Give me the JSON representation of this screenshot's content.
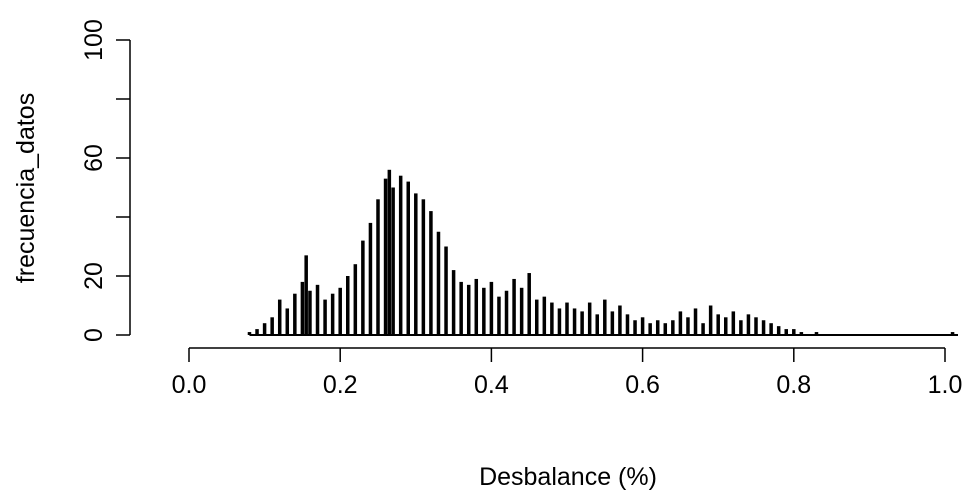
{
  "chart_data": {
    "type": "bar",
    "title": "",
    "xlabel": "Desbalance (%)",
    "ylabel": "frecuencia_datos",
    "xlim": [
      0,
      1.0
    ],
    "ylim": [
      0,
      100
    ],
    "x_ticks": [
      {
        "value": 0.0,
        "label": "0.0"
      },
      {
        "value": 0.2,
        "label": "0.2"
      },
      {
        "value": 0.4,
        "label": "0.4"
      },
      {
        "value": 0.6,
        "label": "0.6"
      },
      {
        "value": 0.8,
        "label": "0.8"
      },
      {
        "value": 1.0,
        "label": "1.0"
      }
    ],
    "y_ticks": [
      {
        "value": 0,
        "label": "0"
      },
      {
        "value": 20,
        "label": "20"
      },
      {
        "value": 40,
        "label": ""
      },
      {
        "value": 60,
        "label": "60"
      },
      {
        "value": 80,
        "label": ""
      },
      {
        "value": 100,
        "label": "100"
      }
    ],
    "bar_color": "#000000",
    "bar_width": 0.002,
    "x": [
      0.08,
      0.09,
      0.1,
      0.11,
      0.12,
      0.13,
      0.14,
      0.15,
      0.155,
      0.16,
      0.17,
      0.18,
      0.19,
      0.2,
      0.21,
      0.22,
      0.23,
      0.24,
      0.25,
      0.26,
      0.265,
      0.27,
      0.28,
      0.29,
      0.3,
      0.31,
      0.32,
      0.33,
      0.34,
      0.35,
      0.36,
      0.37,
      0.38,
      0.39,
      0.4,
      0.41,
      0.42,
      0.43,
      0.44,
      0.45,
      0.46,
      0.47,
      0.48,
      0.49,
      0.5,
      0.51,
      0.52,
      0.53,
      0.54,
      0.55,
      0.56,
      0.57,
      0.58,
      0.59,
      0.6,
      0.61,
      0.62,
      0.63,
      0.64,
      0.65,
      0.66,
      0.67,
      0.68,
      0.69,
      0.7,
      0.71,
      0.72,
      0.73,
      0.74,
      0.75,
      0.76,
      0.77,
      0.78,
      0.79,
      0.8,
      0.81,
      0.82,
      0.83,
      0.84,
      0.85,
      0.86,
      0.87,
      0.88,
      0.89,
      0.9,
      0.91,
      0.92,
      0.93,
      0.94,
      0.95,
      0.96,
      0.97,
      0.98,
      0.99,
      1.0,
      1.01
    ],
    "values": [
      1,
      2,
      4,
      6,
      12,
      9,
      14,
      18,
      27,
      15,
      17,
      12,
      14,
      16,
      20,
      24,
      32,
      38,
      46,
      53,
      56,
      50,
      54,
      52,
      48,
      46,
      42,
      35,
      30,
      22,
      18,
      17,
      19,
      16,
      18,
      13,
      15,
      19,
      16,
      21,
      12,
      13,
      11,
      9,
      11,
      9,
      8,
      11,
      7,
      12,
      8,
      10,
      7,
      5,
      6,
      4,
      5,
      4,
      5,
      8,
      6,
      9,
      4,
      10,
      7,
      6,
      8,
      5,
      7,
      6,
      5,
      4,
      3,
      2,
      2,
      1,
      0,
      1,
      0,
      0,
      0,
      0,
      0,
      0,
      0,
      0,
      0,
      0,
      0,
      0,
      0,
      0,
      0,
      0,
      0,
      1
    ]
  }
}
